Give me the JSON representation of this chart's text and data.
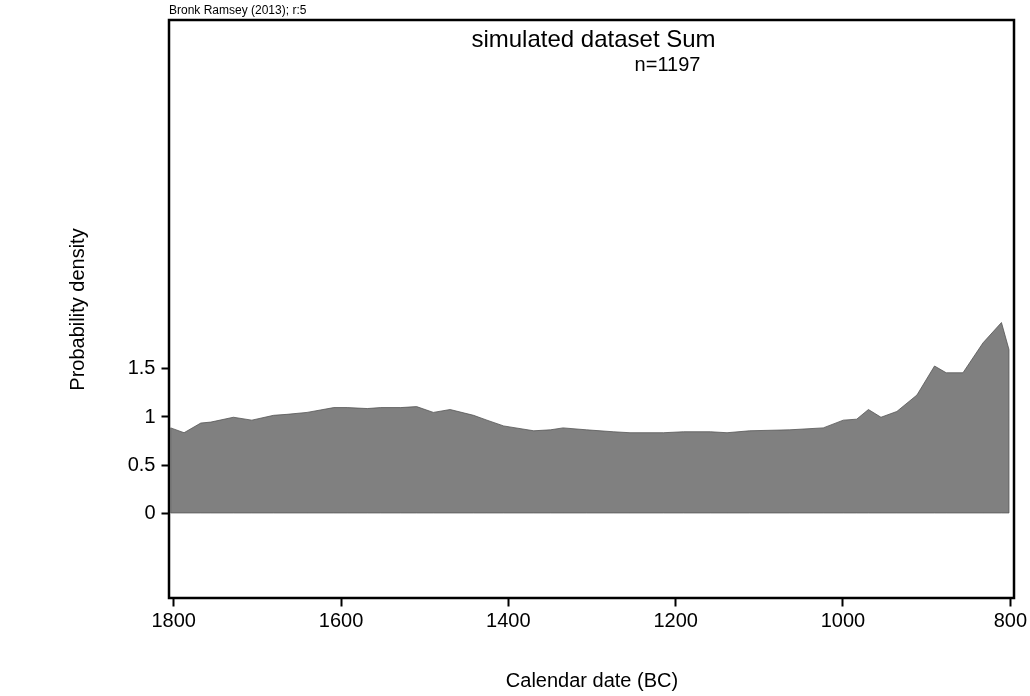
{
  "chart_data": {
    "type": "area",
    "title": "simulated dataset Sum",
    "subtitle": "n=1197",
    "xlabel": "Calendar date (BC)",
    "ylabel": "Probability density",
    "annotations": [
      "Bronk Ramsey (2013); r:5"
    ],
    "x": [
      1803,
      1787,
      1767,
      1755,
      1728,
      1706,
      1680,
      1664,
      1640,
      1608,
      1592,
      1568,
      1552,
      1528,
      1509,
      1489,
      1469,
      1441,
      1425,
      1405,
      1369,
      1349,
      1334,
      1306,
      1274,
      1254,
      1214,
      1190,
      1158,
      1138,
      1111,
      1063,
      1023,
      999,
      983,
      969,
      954,
      935,
      911,
      890,
      876,
      856,
      832,
      810,
      801
    ],
    "series": [
      {
        "color": "#808080",
        "values": [
          0.88,
          0.83,
          0.93,
          0.94,
          0.99,
          0.96,
          1.01,
          1.02,
          1.04,
          1.09,
          1.09,
          1.08,
          1.09,
          1.09,
          1.1,
          1.04,
          1.07,
          1.01,
          0.96,
          0.9,
          0.85,
          0.86,
          0.88,
          0.86,
          0.84,
          0.83,
          0.83,
          0.84,
          0.84,
          0.83,
          0.85,
          0.86,
          0.88,
          0.96,
          0.97,
          1.07,
          0.99,
          1.05,
          1.22,
          1.52,
          1.45,
          1.45,
          1.76,
          1.97,
          1.69
        ]
      }
    ],
    "xlim": [
      1805,
      795
    ],
    "xticks": [
      1800,
      1600,
      1400,
      1200,
      1000,
      800
    ],
    "ylim": [
      -0.88,
      5.1
    ],
    "yticks": [
      0,
      0.5,
      1,
      1.5
    ],
    "grid": false
  }
}
